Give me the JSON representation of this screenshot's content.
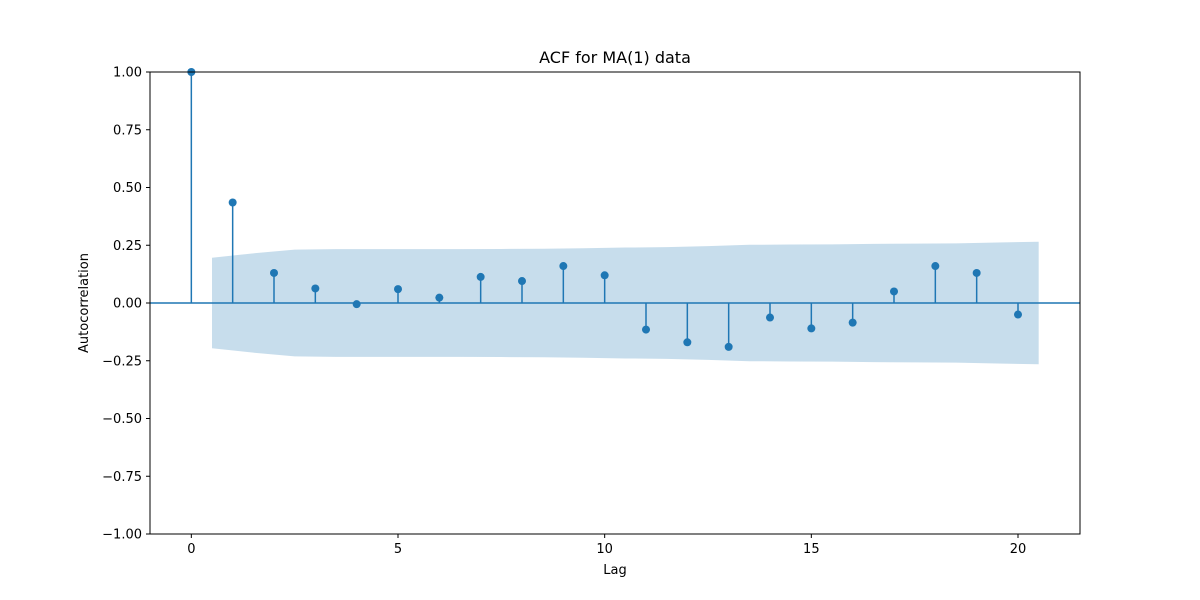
{
  "chart_data": {
    "type": "stem",
    "title": "ACF for MA(1) data",
    "xlabel": "Lag",
    "ylabel": "Autocorrelation",
    "xlim": [
      -1,
      21.5
    ],
    "ylim": [
      -1.0,
      1.0
    ],
    "x_ticks": [
      0,
      5,
      10,
      15,
      20
    ],
    "x_tick_labels": [
      "0",
      "5",
      "10",
      "15",
      "20"
    ],
    "y_ticks": [
      -1.0,
      -0.75,
      -0.5,
      -0.25,
      0.0,
      0.25,
      0.5,
      0.75,
      1.0
    ],
    "y_tick_labels": [
      "−1.00",
      "−0.75",
      "−0.50",
      "−0.25",
      "0.00",
      "0.25",
      "0.50",
      "0.75",
      "1.00"
    ],
    "grid": false,
    "lags": [
      0,
      1,
      2,
      3,
      4,
      5,
      6,
      7,
      8,
      9,
      10,
      11,
      12,
      13,
      14,
      15,
      16,
      17,
      18,
      19,
      20
    ],
    "acf": [
      1.0,
      0.435,
      0.13,
      0.063,
      -0.005,
      0.06,
      0.023,
      0.113,
      0.095,
      0.16,
      0.12,
      -0.115,
      -0.17,
      -0.19,
      -0.063,
      -0.11,
      -0.085,
      0.05,
      0.16,
      0.13,
      -0.05
    ],
    "confidence_band": {
      "x": [
        0.5,
        1.5,
        2.5,
        3.5,
        4.5,
        5.5,
        6.5,
        7.5,
        8.5,
        9.5,
        10.5,
        11.5,
        12.5,
        13.5,
        14.5,
        15.5,
        16.5,
        17.5,
        18.5,
        19.5,
        20.5
      ],
      "upper": [
        0.196,
        0.215,
        0.231,
        0.233,
        0.233,
        0.233,
        0.233,
        0.234,
        0.235,
        0.237,
        0.24,
        0.242,
        0.246,
        0.252,
        0.253,
        0.254,
        0.256,
        0.257,
        0.258,
        0.262,
        0.265
      ]
    },
    "colors": {
      "stem": "#1f77b4",
      "band": "#1f77b4",
      "band_opacity": 0.25,
      "zero_line": "#1f77b4",
      "axes": "#000000"
    }
  }
}
